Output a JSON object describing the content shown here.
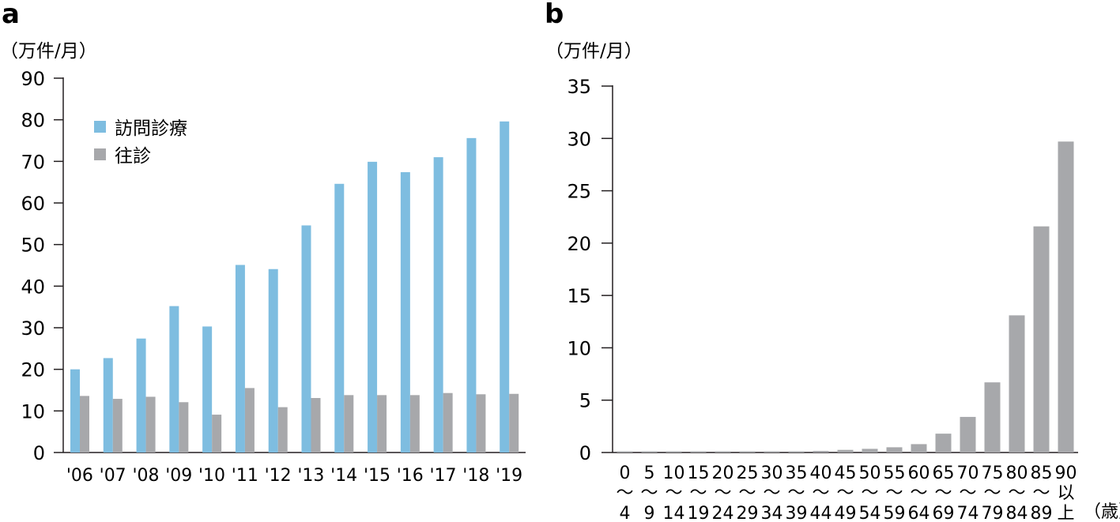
{
  "colors": {
    "visit": "#7ebde0",
    "house_call": "#a7a8ab",
    "axis": "#231f20"
  },
  "chart_data": [
    {
      "panel": "a",
      "type": "bar",
      "unit_label": "（万件/月）",
      "ylim": [
        0,
        90
      ],
      "yticks": [
        "0",
        "10",
        "20",
        "30",
        "40",
        "50",
        "60",
        "70",
        "80",
        "90"
      ],
      "categories": [
        "'06",
        "'07",
        "'08",
        "'09",
        "'10",
        "'11",
        "'12",
        "'13",
        "'14",
        "'15",
        "'16",
        "'17",
        "'18",
        "'19"
      ],
      "legend_position": "top-left",
      "series": [
        {
          "name": "訪問診療",
          "color": "#7ebde0",
          "values": [
            20,
            22.7,
            27.4,
            35.2,
            30.3,
            45.1,
            44.1,
            54.6,
            64.6,
            69.9,
            67.4,
            71.0,
            75.6,
            79.6
          ]
        },
        {
          "name": "往診",
          "color": "#a7a8ab",
          "values": [
            13.6,
            12.9,
            13.4,
            12.1,
            9.1,
            15.5,
            10.9,
            13.1,
            13.8,
            13.8,
            13.8,
            14.3,
            14.0,
            14.1
          ]
        }
      ]
    },
    {
      "panel": "b",
      "type": "bar",
      "unit_label": "（万件/月）",
      "ylim": [
        0,
        35
      ],
      "yticks": [
        "0",
        "5",
        "10",
        "15",
        "20",
        "25",
        "30",
        "35"
      ],
      "categories": [
        [
          "0",
          "〜",
          "4"
        ],
        [
          "5",
          "〜",
          "9"
        ],
        [
          "10",
          "〜",
          "14"
        ],
        [
          "15",
          "〜",
          "19"
        ],
        [
          "20",
          "〜",
          "24"
        ],
        [
          "25",
          "〜",
          "29"
        ],
        [
          "30",
          "〜",
          "34"
        ],
        [
          "35",
          "〜",
          "39"
        ],
        [
          "40",
          "〜",
          "44"
        ],
        [
          "45",
          "〜",
          "49"
        ],
        [
          "50",
          "〜",
          "54"
        ],
        [
          "55",
          "〜",
          "59"
        ],
        [
          "60",
          "〜",
          "64"
        ],
        [
          "65",
          "〜",
          "69"
        ],
        [
          "70",
          "〜",
          "74"
        ],
        [
          "75",
          "〜",
          "79"
        ],
        [
          "80",
          "〜",
          "84"
        ],
        [
          "85",
          "〜",
          "89"
        ],
        [
          "90",
          "以",
          "上"
        ]
      ],
      "x_unit_label": "（歳）",
      "series": [
        {
          "color": "#a7a8ab",
          "values": [
            0.02,
            0.02,
            0.02,
            0.03,
            0.04,
            0.05,
            0.08,
            0.1,
            0.15,
            0.25,
            0.35,
            0.5,
            0.8,
            1.8,
            3.4,
            6.7,
            13.1,
            21.6,
            29.7
          ]
        }
      ]
    }
  ]
}
